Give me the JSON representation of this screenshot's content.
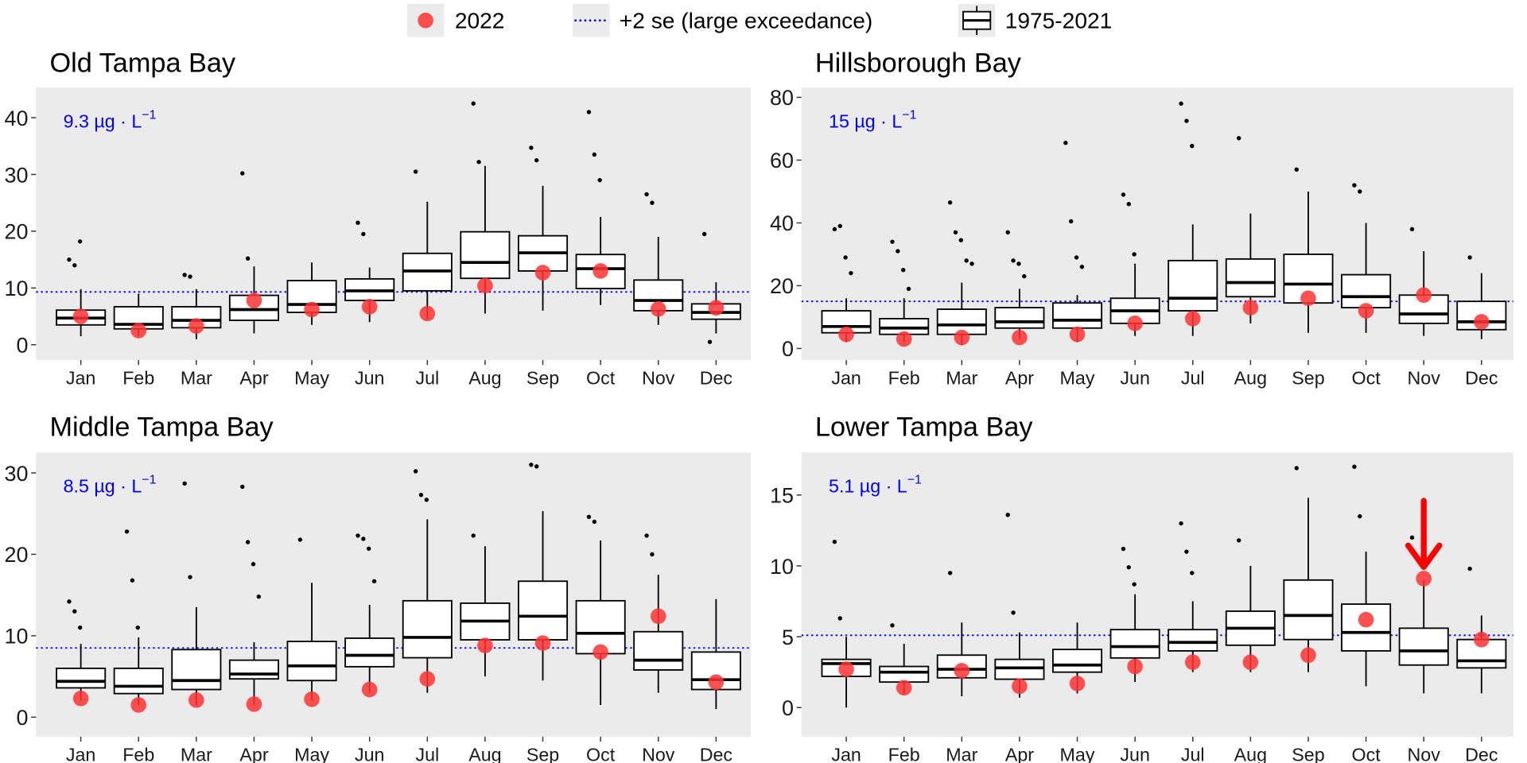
{
  "legend": {
    "items": [
      {
        "key": "point",
        "label": "2022"
      },
      {
        "key": "dotted-line",
        "label": "+2 se (large exceedance)"
      },
      {
        "key": "boxplot",
        "label": "1975-2021"
      }
    ],
    "position": "top"
  },
  "colors": {
    "point_2022": "#ff3333",
    "threshold": "#0000ff",
    "panel_bg": "#ebebeb",
    "arrow": "#ff0000",
    "box": "#000000"
  },
  "chart_data": [
    {
      "type": "box",
      "title": "Old Tampa Bay",
      "threshold": 9.3,
      "threshold_label": "9.3 µg · L",
      "threshold_unit_exp": "−1",
      "categories": [
        "Jan",
        "Feb",
        "Mar",
        "Apr",
        "May",
        "Jun",
        "Jul",
        "Aug",
        "Sep",
        "Oct",
        "Nov",
        "Dec"
      ],
      "ylim": [
        -2.7,
        45.3
      ],
      "yticks": [
        0,
        10,
        20,
        30,
        40
      ],
      "boxes": [
        {
          "q1": 3.5,
          "med": 4.7,
          "q3": 6.1,
          "lo": 1.5,
          "hi": 9.8,
          "p2022": 5.0,
          "out": [
            15,
            14,
            18.2
          ]
        },
        {
          "q1": 2.8,
          "med": 3.6,
          "q3": 6.7,
          "lo": 1.5,
          "hi": 9.0,
          "p2022": 2.5,
          "out": []
        },
        {
          "q1": 3.0,
          "med": 4.3,
          "q3": 6.7,
          "lo": 1.0,
          "hi": 9.8,
          "p2022": 3.3,
          "out": [
            12.3,
            12.0
          ]
        },
        {
          "q1": 4.3,
          "med": 6.2,
          "q3": 8.7,
          "lo": 2.0,
          "hi": 13.8,
          "p2022": 7.8,
          "out": [
            30.2,
            15.2
          ]
        },
        {
          "q1": 5.7,
          "med": 7.1,
          "q3": 11.3,
          "lo": 3.5,
          "hi": 14.5,
          "p2022": 6.2,
          "out": []
        },
        {
          "q1": 7.8,
          "med": 9.5,
          "q3": 11.6,
          "lo": 4.0,
          "hi": 13.6,
          "p2022": 6.7,
          "out": [
            21.5,
            19.5
          ]
        },
        {
          "q1": 9.5,
          "med": 13.0,
          "q3": 16.1,
          "lo": 4.5,
          "hi": 25.2,
          "p2022": 5.5,
          "out": [
            30.5
          ]
        },
        {
          "q1": 11.7,
          "med": 14.5,
          "q3": 19.9,
          "lo": 5.5,
          "hi": 31.5,
          "p2022": 10.4,
          "out": [
            42.5,
            32.2
          ]
        },
        {
          "q1": 13.0,
          "med": 16.2,
          "q3": 19.2,
          "lo": 6.0,
          "hi": 28.0,
          "p2022": 12.7,
          "out": [
            34.7,
            32.5
          ]
        },
        {
          "q1": 9.9,
          "med": 13.4,
          "q3": 15.9,
          "lo": 7.0,
          "hi": 22.5,
          "p2022": 13.0,
          "out": [
            41,
            33.5,
            29
          ]
        },
        {
          "q1": 6.0,
          "med": 7.8,
          "q3": 11.4,
          "lo": 3.5,
          "hi": 19.0,
          "p2022": 6.3,
          "out": [
            26.5,
            25.0
          ]
        },
        {
          "q1": 4.5,
          "med": 5.7,
          "q3": 7.2,
          "lo": 2.0,
          "hi": 11.0,
          "p2022": 6.5,
          "out": [
            19.5,
            0.5
          ]
        }
      ]
    },
    {
      "type": "box",
      "title": "Hillsborough Bay",
      "threshold": 15,
      "threshold_label": "15 µg · L",
      "threshold_unit_exp": "−1",
      "categories": [
        "Jan",
        "Feb",
        "Mar",
        "Apr",
        "May",
        "Jun",
        "Jul",
        "Aug",
        "Sep",
        "Oct",
        "Nov",
        "Dec"
      ],
      "ylim": [
        -3.7,
        83.1
      ],
      "yticks": [
        0,
        20,
        40,
        60,
        80
      ],
      "boxes": [
        {
          "q1": 5,
          "med": 7,
          "q3": 12,
          "lo": 2,
          "hi": 16,
          "p2022": 4.5,
          "out": [
            38,
            39,
            29,
            24
          ]
        },
        {
          "q1": 4.5,
          "med": 6.5,
          "q3": 9.5,
          "lo": 2,
          "hi": 16,
          "p2022": 3,
          "out": [
            34,
            31,
            25,
            19
          ]
        },
        {
          "q1": 4.5,
          "med": 7.5,
          "q3": 12.5,
          "lo": 1,
          "hi": 21,
          "p2022": 3.5,
          "out": [
            46.5,
            37,
            34.5,
            28,
            27
          ]
        },
        {
          "q1": 6.5,
          "med": 8.5,
          "q3": 13,
          "lo": 3,
          "hi": 19,
          "p2022": 3.5,
          "out": [
            37,
            28,
            27,
            23
          ]
        },
        {
          "q1": 6.5,
          "med": 9,
          "q3": 14.5,
          "lo": 2,
          "hi": 17,
          "p2022": 4.5,
          "out": [
            65.5,
            40.5,
            29,
            26
          ]
        },
        {
          "q1": 8,
          "med": 12,
          "q3": 16,
          "lo": 4,
          "hi": 27,
          "p2022": 8,
          "out": [
            49,
            46,
            30
          ]
        },
        {
          "q1": 12,
          "med": 16,
          "q3": 28,
          "lo": 4,
          "hi": 39.5,
          "p2022": 9.5,
          "out": [
            78,
            72.5,
            64.5
          ]
        },
        {
          "q1": 16.5,
          "med": 21,
          "q3": 28.5,
          "lo": 8,
          "hi": 43,
          "p2022": 13,
          "out": [
            67
          ]
        },
        {
          "q1": 14.5,
          "med": 20.5,
          "q3": 30,
          "lo": 5,
          "hi": 50,
          "p2022": 16,
          "out": [
            57
          ]
        },
        {
          "q1": 13,
          "med": 16.5,
          "q3": 23.5,
          "lo": 5,
          "hi": 40,
          "p2022": 12,
          "out": [
            52,
            50
          ]
        },
        {
          "q1": 8,
          "med": 11,
          "q3": 17,
          "lo": 4,
          "hi": 31,
          "p2022": 17,
          "out": [
            38
          ]
        },
        {
          "q1": 6,
          "med": 8.5,
          "q3": 15,
          "lo": 3,
          "hi": 24,
          "p2022": 8.5,
          "out": [
            29
          ]
        }
      ]
    },
    {
      "type": "box",
      "title": "Middle Tampa Bay",
      "threshold": 8.5,
      "threshold_label": "8.5 µg · L",
      "threshold_unit_exp": "−1",
      "categories": [
        "Jan",
        "Feb",
        "Mar",
        "Apr",
        "May",
        "Jun",
        "Jul",
        "Aug",
        "Sep",
        "Oct",
        "Nov",
        "Dec"
      ],
      "ylim": [
        -2.4,
        32.5
      ],
      "yticks": [
        0,
        10,
        20,
        30
      ],
      "boxes": [
        {
          "q1": 3.6,
          "med": 4.4,
          "q3": 6.0,
          "lo": 2.0,
          "hi": 9.0,
          "p2022": 2.3,
          "out": [
            14.2,
            13,
            11
          ]
        },
        {
          "q1": 2.9,
          "med": 3.8,
          "q3": 6.0,
          "lo": 1.5,
          "hi": 9.8,
          "p2022": 1.5,
          "out": [
            22.8,
            16.8,
            11
          ]
        },
        {
          "q1": 3.4,
          "med": 4.5,
          "q3": 8.3,
          "lo": 1.5,
          "hi": 13.5,
          "p2022": 2.1,
          "out": [
            28.7,
            17.2
          ]
        },
        {
          "q1": 4.7,
          "med": 5.3,
          "q3": 7.0,
          "lo": 1.5,
          "hi": 9.2,
          "p2022": 1.6,
          "out": [
            28.3,
            21.5,
            18.8,
            14.8
          ]
        },
        {
          "q1": 4.5,
          "med": 6.3,
          "q3": 9.3,
          "lo": 2.0,
          "hi": 16.5,
          "p2022": 2.2,
          "out": [
            21.8
          ]
        },
        {
          "q1": 6.2,
          "med": 7.6,
          "q3": 9.7,
          "lo": 3.0,
          "hi": 13.8,
          "p2022": 3.4,
          "out": [
            22.3,
            21.9,
            20.7,
            16.7
          ]
        },
        {
          "q1": 7.3,
          "med": 9.8,
          "q3": 14.3,
          "lo": 3.0,
          "hi": 24.3,
          "p2022": 4.7,
          "out": [
            30.2,
            27.3,
            26.7
          ]
        },
        {
          "q1": 9.5,
          "med": 11.8,
          "q3": 14.0,
          "lo": 5.0,
          "hi": 21.0,
          "p2022": 8.8,
          "out": [
            22.3
          ]
        },
        {
          "q1": 9.5,
          "med": 12.4,
          "q3": 16.7,
          "lo": 4.5,
          "hi": 25.3,
          "p2022": 9.1,
          "out": [
            31,
            30.8
          ]
        },
        {
          "q1": 7.8,
          "med": 10.3,
          "q3": 14.3,
          "lo": 1.5,
          "hi": 21.7,
          "p2022": 8.0,
          "out": [
            24.6,
            24
          ]
        },
        {
          "q1": 5.8,
          "med": 7.0,
          "q3": 10.5,
          "lo": 3.0,
          "hi": 17.5,
          "p2022": 12.4,
          "out": [
            22.3,
            20
          ]
        },
        {
          "q1": 3.4,
          "med": 4.6,
          "q3": 8.0,
          "lo": 1.0,
          "hi": 14.5,
          "p2022": 4.3,
          "out": []
        }
      ]
    },
    {
      "type": "box",
      "title": "Lower Tampa Bay",
      "threshold": 5.1,
      "threshold_label": "5.1 µg · L",
      "threshold_unit_exp": "−1",
      "categories": [
        "Jan",
        "Feb",
        "Mar",
        "Apr",
        "May",
        "Jun",
        "Jul",
        "Aug",
        "Sep",
        "Oct",
        "Nov",
        "Dec"
      ],
      "ylim": [
        -2.06,
        18.0
      ],
      "yticks": [
        0,
        5,
        10,
        15
      ],
      "highlight": {
        "category": "Nov",
        "annotation": "down-arrow"
      },
      "boxes": [
        {
          "q1": 2.2,
          "med": 3.1,
          "q3": 3.4,
          "lo": 0.0,
          "hi": 5.0,
          "p2022": 2.7,
          "out": [
            11.7,
            6.3
          ]
        },
        {
          "q1": 1.8,
          "med": 2.5,
          "q3": 2.9,
          "lo": 1.0,
          "hi": 4.5,
          "p2022": 1.4,
          "out": [
            5.8
          ]
        },
        {
          "q1": 2.1,
          "med": 2.7,
          "q3": 3.7,
          "lo": 0.8,
          "hi": 6.0,
          "p2022": 2.6,
          "out": [
            9.5
          ]
        },
        {
          "q1": 2.0,
          "med": 2.8,
          "q3": 3.4,
          "lo": 0.7,
          "hi": 5.3,
          "p2022": 1.5,
          "out": [
            13.6,
            6.7
          ]
        },
        {
          "q1": 2.5,
          "med": 3.0,
          "q3": 4.1,
          "lo": 1.0,
          "hi": 6.0,
          "p2022": 1.7,
          "out": []
        },
        {
          "q1": 3.5,
          "med": 4.3,
          "q3": 5.5,
          "lo": 1.8,
          "hi": 8.0,
          "p2022": 2.9,
          "out": [
            11.2,
            9.9,
            8.7
          ]
        },
        {
          "q1": 4.0,
          "med": 4.6,
          "q3": 5.5,
          "lo": 2.5,
          "hi": 7.5,
          "p2022": 3.2,
          "out": [
            13,
            11,
            9.5
          ]
        },
        {
          "q1": 4.4,
          "med": 5.6,
          "q3": 6.8,
          "lo": 2.5,
          "hi": 10.0,
          "p2022": 3.2,
          "out": [
            11.8
          ]
        },
        {
          "q1": 4.8,
          "med": 6.5,
          "q3": 9.0,
          "lo": 2.5,
          "hi": 14.8,
          "p2022": 3.7,
          "out": [
            16.9
          ]
        },
        {
          "q1": 4.0,
          "med": 5.3,
          "q3": 7.3,
          "lo": 1.5,
          "hi": 11.0,
          "p2022": 6.2,
          "out": [
            17,
            13.5
          ]
        },
        {
          "q1": 3.0,
          "med": 4.0,
          "q3": 5.6,
          "lo": 1.0,
          "hi": 9.0,
          "p2022": 9.1,
          "out": [
            12
          ]
        },
        {
          "q1": 2.8,
          "med": 3.3,
          "q3": 4.8,
          "lo": 1.0,
          "hi": 6.5,
          "p2022": 4.8,
          "out": [
            9.8
          ]
        }
      ]
    }
  ]
}
